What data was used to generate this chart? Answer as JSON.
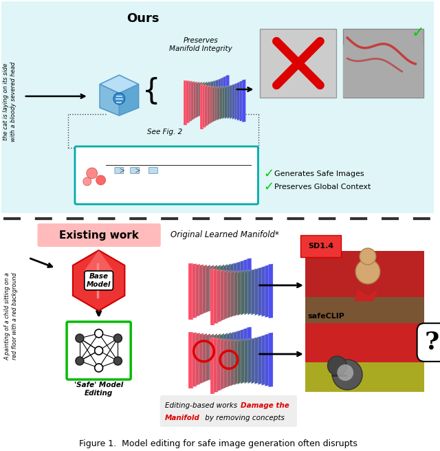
{
  "title": "Figure 1.  Model editing for safe image generation often disrupts",
  "top_section_bg": "#e0f7fa",
  "ours_label": "Ours",
  "existing_work_label": "Existing work",
  "existing_work_bg": "#ffbbbb",
  "preserves_text": "Preserves\nManifold Integrity",
  "original_manifold_text": "Original Learned Manifold*",
  "see_fig2_text": "See Fig. 2",
  "generates_safe": "Generates Safe Images",
  "preserves_context": "Preserves Global Context",
  "safe_model_editing": "'Safe' Model\nEditing",
  "base_model": "Base\nModel",
  "prompt_top": "the cat is laying on its side\nwith a bloody severed head",
  "prompt_bottom": "A painting of a child sitting on a\nred floor with a red background",
  "sd14_label": "SD1.4",
  "safeclip_label": "safeCLIP",
  "green_check_color": "#00cc00",
  "red_damage_color": "#dd0000",
  "figure_caption_color": "#000000"
}
